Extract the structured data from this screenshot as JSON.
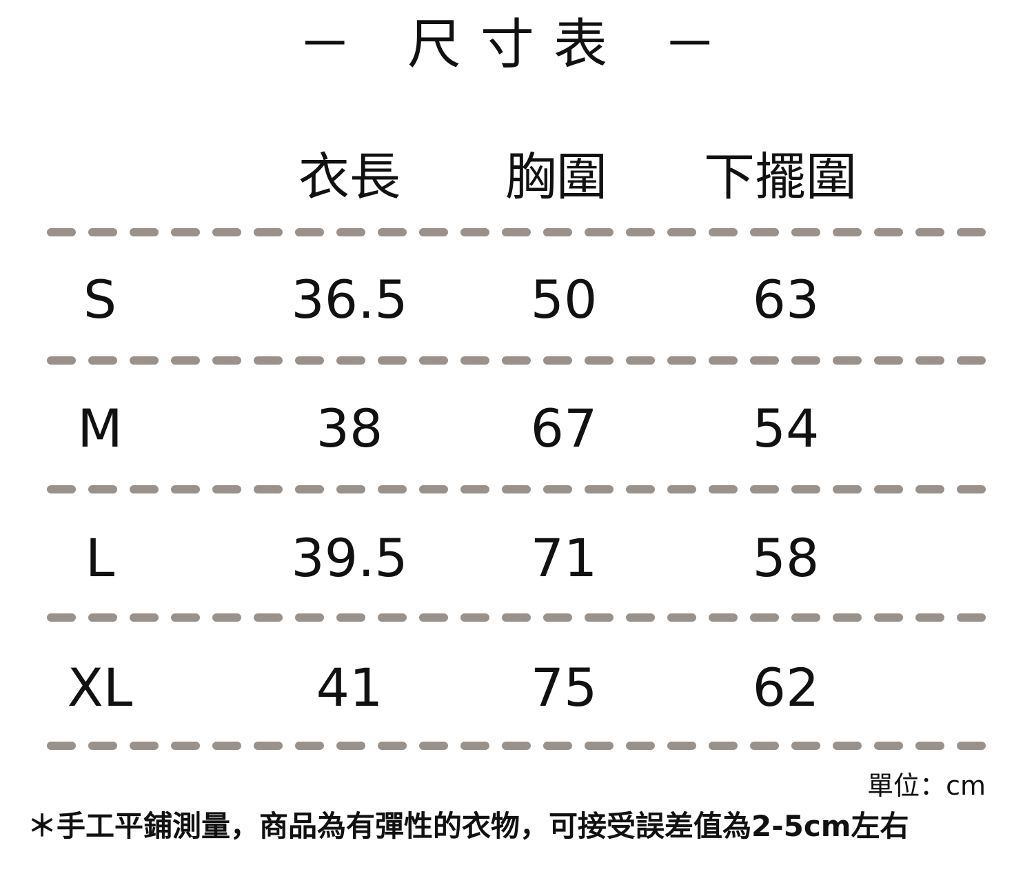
{
  "title": "－ 尺寸表 －",
  "headers": [
    "衣長",
    "胸圍",
    "下擺圍"
  ],
  "rows": [
    {
      "size": "S",
      "values": [
        "36.5",
        "50",
        "63"
      ]
    },
    {
      "size": "M",
      "values": [
        "38",
        "67",
        "54"
      ]
    },
    {
      "size": "L",
      "values": [
        "39.5",
        "71",
        "58"
      ]
    },
    {
      "size": "XL",
      "values": [
        "41",
        "75",
        "62"
      ]
    }
  ],
  "unit": "單位：cm",
  "note": "＊手工平鋪測量，商品為有彈性的衣物，可接受誤差值為2-5cm左右",
  "colors": {
    "divider": "#9a928a",
    "text": "#111111"
  }
}
